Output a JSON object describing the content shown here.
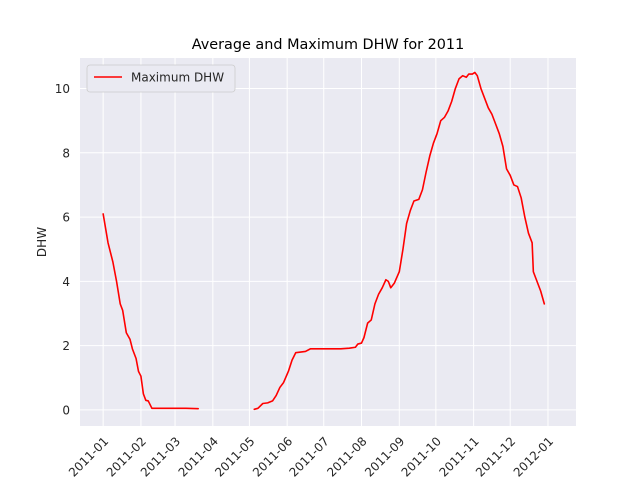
{
  "chart_data": {
    "type": "line",
    "title": "Average and Maximum DHW for 2011",
    "xlabel": "",
    "ylabel": "DHW",
    "ylim": [
      -0.5,
      10.95
    ],
    "xlim": [
      "2010-12-13",
      "2012-01-24"
    ],
    "yticks": [
      0,
      2,
      4,
      6,
      8,
      10
    ],
    "xticks": [
      "2011-01",
      "2011-02",
      "2011-03",
      "2011-04",
      "2011-05",
      "2011-06",
      "2011-07",
      "2011-08",
      "2011-09",
      "2011-10",
      "2011-11",
      "2011-12",
      "2012-01"
    ],
    "grid": true,
    "legend_position": "top-left",
    "colors": {
      "series": "#ff0000",
      "plot_bg": "#eaeaf2",
      "grid": "#ffffff"
    },
    "series": [
      {
        "name": "Maximum DHW",
        "segments": [
          [
            [
              "2011-01-01",
              6.1
            ],
            [
              "2011-01-05",
              5.2
            ],
            [
              "2011-01-09",
              4.6
            ],
            [
              "2011-01-12",
              4.0
            ],
            [
              "2011-01-15",
              3.3
            ],
            [
              "2011-01-17",
              3.1
            ],
            [
              "2011-01-20",
              2.4
            ],
            [
              "2011-01-23",
              2.2
            ],
            [
              "2011-01-25",
              1.9
            ],
            [
              "2011-01-28",
              1.6
            ],
            [
              "2011-01-30",
              1.2
            ],
            [
              "2011-02-01",
              1.05
            ],
            [
              "2011-02-03",
              0.5
            ],
            [
              "2011-02-05",
              0.3
            ],
            [
              "2011-02-07",
              0.28
            ],
            [
              "2011-02-10",
              0.05
            ],
            [
              "2011-02-20",
              0.05
            ],
            [
              "2011-03-10",
              0.05
            ],
            [
              "2011-03-20",
              0.04
            ]
          ],
          [
            [
              "2011-05-05",
              0.02
            ],
            [
              "2011-05-08",
              0.05
            ],
            [
              "2011-05-12",
              0.2
            ],
            [
              "2011-05-16",
              0.22
            ],
            [
              "2011-05-20",
              0.28
            ],
            [
              "2011-05-23",
              0.45
            ],
            [
              "2011-05-26",
              0.7
            ],
            [
              "2011-05-29",
              0.85
            ],
            [
              "2011-06-02",
              1.2
            ],
            [
              "2011-06-05",
              1.55
            ],
            [
              "2011-06-08",
              1.78
            ],
            [
              "2011-06-12",
              1.8
            ],
            [
              "2011-06-16",
              1.82
            ],
            [
              "2011-06-20",
              1.9
            ],
            [
              "2011-07-01",
              1.9
            ],
            [
              "2011-07-15",
              1.9
            ],
            [
              "2011-07-22",
              1.92
            ],
            [
              "2011-07-27",
              1.95
            ],
            [
              "2011-07-29",
              2.05
            ],
            [
              "2011-08-01",
              2.08
            ],
            [
              "2011-08-03",
              2.25
            ],
            [
              "2011-08-06",
              2.7
            ],
            [
              "2011-08-09",
              2.8
            ],
            [
              "2011-08-12",
              3.3
            ],
            [
              "2011-08-15",
              3.6
            ],
            [
              "2011-08-18",
              3.8
            ],
            [
              "2011-08-21",
              4.05
            ],
            [
              "2011-08-23",
              4.0
            ],
            [
              "2011-08-25",
              3.8
            ],
            [
              "2011-08-28",
              3.95
            ],
            [
              "2011-09-01",
              4.3
            ],
            [
              "2011-09-04",
              5.0
            ],
            [
              "2011-09-07",
              5.8
            ],
            [
              "2011-09-10",
              6.2
            ],
            [
              "2011-09-13",
              6.5
            ],
            [
              "2011-09-17",
              6.55
            ],
            [
              "2011-09-20",
              6.85
            ],
            [
              "2011-09-23",
              7.4
            ],
            [
              "2011-09-26",
              7.9
            ],
            [
              "2011-09-29",
              8.3
            ],
            [
              "2011-10-02",
              8.6
            ],
            [
              "2011-10-05",
              9.0
            ],
            [
              "2011-10-08",
              9.1
            ],
            [
              "2011-10-11",
              9.3
            ],
            [
              "2011-10-14",
              9.6
            ],
            [
              "2011-10-17",
              10.0
            ],
            [
              "2011-10-20",
              10.3
            ],
            [
              "2011-10-23",
              10.4
            ],
            [
              "2011-10-26",
              10.35
            ],
            [
              "2011-10-28",
              10.45
            ],
            [
              "2011-10-31",
              10.45
            ],
            [
              "2011-11-02",
              10.5
            ],
            [
              "2011-11-04",
              10.4
            ],
            [
              "2011-11-07",
              10.0
            ],
            [
              "2011-11-10",
              9.7
            ],
            [
              "2011-11-13",
              9.4
            ],
            [
              "2011-11-16",
              9.2
            ],
            [
              "2011-11-19",
              8.9
            ],
            [
              "2011-11-22",
              8.6
            ],
            [
              "2011-11-25",
              8.2
            ],
            [
              "2011-11-28",
              7.5
            ],
            [
              "2011-12-01",
              7.3
            ],
            [
              "2011-12-04",
              7.0
            ],
            [
              "2011-12-07",
              6.95
            ],
            [
              "2011-12-10",
              6.6
            ],
            [
              "2011-12-13",
              6.0
            ],
            [
              "2011-12-16",
              5.5
            ],
            [
              "2011-12-19",
              5.2
            ],
            [
              "2011-12-20",
              4.3
            ],
            [
              "2011-12-23",
              4.0
            ],
            [
              "2011-12-26",
              3.7
            ],
            [
              "2011-12-29",
              3.3
            ]
          ]
        ]
      }
    ]
  }
}
